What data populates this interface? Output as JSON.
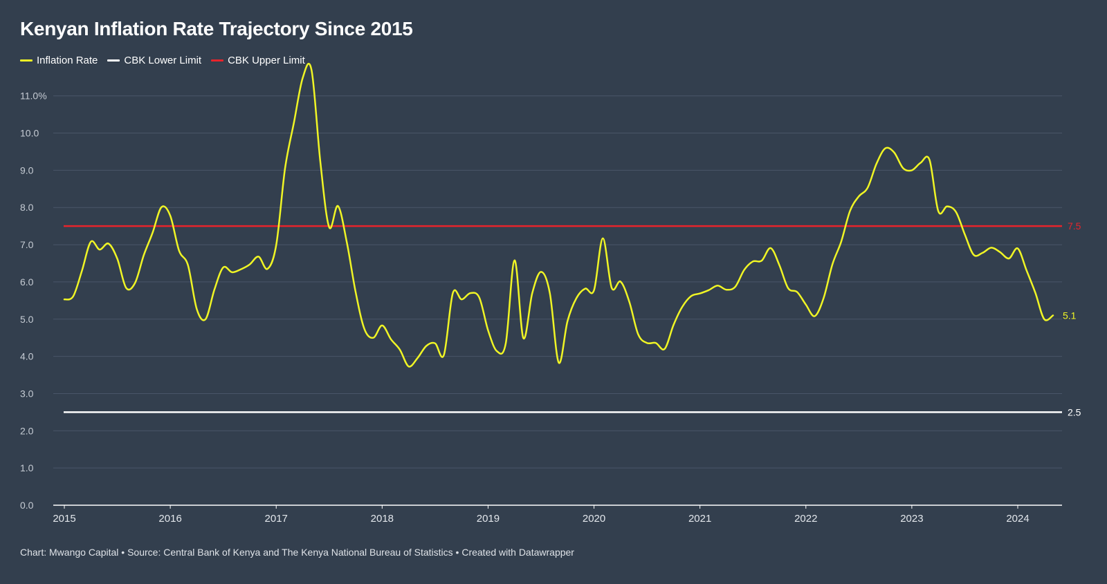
{
  "title": "Kenyan Inflation Rate Trajectory Since 2015",
  "legend": [
    {
      "label": "Inflation Rate",
      "color": "#f0f525"
    },
    {
      "label": "CBK Lower Limit",
      "color": "#ffffff"
    },
    {
      "label": "CBK Upper Limit",
      "color": "#e8242b"
    }
  ],
  "footer": "Chart: Mwango Capital • Source: Central Bank of Kenya and The Kenya National Bureau of Statistics • Created with Datawrapper",
  "chart_data": {
    "type": "line",
    "title": "Kenyan Inflation Rate Trajectory Since 2015",
    "xlabel": "",
    "ylabel": "",
    "xlim": [
      2015,
      2024.33
    ],
    "ylim": [
      0,
      11.7
    ],
    "grid": true,
    "legend_position": "top-left",
    "y_ticks": [
      0,
      1,
      2,
      3,
      4,
      5,
      6,
      7,
      8,
      9,
      10,
      11
    ],
    "y_tick_labels": [
      "0.0",
      "1.0",
      "2.0",
      "3.0",
      "4.0",
      "5.0",
      "6.0",
      "7.0",
      "8.0",
      "9.0",
      "10.0",
      "11.0%"
    ],
    "x_ticks": [
      2015,
      2016,
      2017,
      2018,
      2019,
      2020,
      2021,
      2022,
      2023,
      2024
    ],
    "x_tick_labels": [
      "2015",
      "2016",
      "2017",
      "2018",
      "2019",
      "2020",
      "2021",
      "2022",
      "2023",
      "2024"
    ],
    "reference_lines": [
      {
        "name": "CBK Upper Limit",
        "value": 7.5,
        "label": "7.5",
        "color": "#e8242b"
      },
      {
        "name": "CBK Lower Limit",
        "value": 2.5,
        "label": "2.5",
        "color": "#ffffff"
      }
    ],
    "series": [
      {
        "name": "Inflation Rate",
        "color": "#f0f525",
        "end_label": "5.1",
        "x": [
          2015.0,
          2015.083,
          2015.167,
          2015.25,
          2015.333,
          2015.417,
          2015.5,
          2015.583,
          2015.667,
          2015.75,
          2015.833,
          2015.917,
          2016.0,
          2016.083,
          2016.167,
          2016.25,
          2016.333,
          2016.417,
          2016.5,
          2016.583,
          2016.667,
          2016.75,
          2016.833,
          2016.917,
          2017.0,
          2017.083,
          2017.167,
          2017.25,
          2017.333,
          2017.417,
          2017.5,
          2017.583,
          2017.667,
          2017.75,
          2017.833,
          2017.917,
          2018.0,
          2018.083,
          2018.167,
          2018.25,
          2018.333,
          2018.417,
          2018.5,
          2018.583,
          2018.667,
          2018.75,
          2018.833,
          2018.917,
          2019.0,
          2019.083,
          2019.167,
          2019.25,
          2019.333,
          2019.417,
          2019.5,
          2019.583,
          2019.667,
          2019.75,
          2019.833,
          2019.917,
          2020.0,
          2020.083,
          2020.167,
          2020.25,
          2020.333,
          2020.417,
          2020.5,
          2020.583,
          2020.667,
          2020.75,
          2020.833,
          2020.917,
          2021.0,
          2021.083,
          2021.167,
          2021.25,
          2021.333,
          2021.417,
          2021.5,
          2021.583,
          2021.667,
          2021.75,
          2021.833,
          2021.917,
          2022.0,
          2022.083,
          2022.167,
          2022.25,
          2022.333,
          2022.417,
          2022.5,
          2022.583,
          2022.667,
          2022.75,
          2022.833,
          2022.917,
          2023.0,
          2023.083,
          2023.167,
          2023.25,
          2023.333,
          2023.417,
          2023.5,
          2023.583,
          2023.667,
          2023.75,
          2023.833,
          2023.917,
          2024.0,
          2024.083,
          2024.167,
          2024.25,
          2024.333
        ],
        "values": [
          5.53,
          5.61,
          6.31,
          7.08,
          6.87,
          7.03,
          6.62,
          5.84,
          5.97,
          6.72,
          7.32,
          8.01,
          7.78,
          6.84,
          6.45,
          5.27,
          5.0,
          5.8,
          6.39,
          6.26,
          6.34,
          6.47,
          6.68,
          6.35,
          6.99,
          9.04,
          10.28,
          11.48,
          11.7,
          9.21,
          7.47,
          8.04,
          7.06,
          5.72,
          4.73,
          4.5,
          4.83,
          4.46,
          4.18,
          3.73,
          3.95,
          4.28,
          4.35,
          4.04,
          5.7,
          5.53,
          5.7,
          5.58,
          4.7,
          4.14,
          4.35,
          6.58,
          4.49,
          5.7,
          6.27,
          5.7,
          3.83,
          4.95,
          5.56,
          5.82,
          5.78,
          7.17,
          5.84,
          6.01,
          5.47,
          4.59,
          4.36,
          4.36,
          4.2,
          4.84,
          5.33,
          5.62,
          5.69,
          5.78,
          5.9,
          5.79,
          5.87,
          6.32,
          6.55,
          6.57,
          6.91,
          6.45,
          5.83,
          5.73,
          5.39,
          5.08,
          5.56,
          6.47,
          7.08,
          7.91,
          8.3,
          8.53,
          9.18,
          9.59,
          9.48,
          9.06,
          9.0,
          9.2,
          9.28,
          7.9,
          8.03,
          7.88,
          7.28,
          6.73,
          6.78,
          6.92,
          6.8,
          6.63,
          6.9,
          6.31,
          5.7,
          5.0,
          5.1
        ]
      }
    ]
  }
}
